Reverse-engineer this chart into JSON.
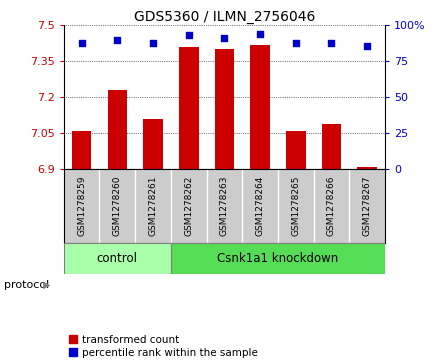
{
  "title": "GDS5360 / ILMN_2756046",
  "samples": [
    "GSM1278259",
    "GSM1278260",
    "GSM1278261",
    "GSM1278262",
    "GSM1278263",
    "GSM1278264",
    "GSM1278265",
    "GSM1278266",
    "GSM1278267"
  ],
  "bar_values": [
    7.06,
    7.23,
    7.11,
    7.41,
    7.4,
    7.42,
    7.06,
    7.09,
    6.91
  ],
  "dot_values": [
    88,
    90,
    88,
    93,
    91,
    94,
    88,
    88,
    86
  ],
  "ylim_left": [
    6.9,
    7.5
  ],
  "ylim_right": [
    0,
    100
  ],
  "yticks_left": [
    6.9,
    7.05,
    7.2,
    7.35,
    7.5
  ],
  "yticks_right": [
    0,
    25,
    50,
    75,
    100
  ],
  "bar_color": "#cc0000",
  "dot_color": "#0000cc",
  "control_samples": 3,
  "protocol_label": "protocol",
  "group_labels": [
    "control",
    "Csnk1a1 knockdown"
  ],
  "ctrl_color": "#aaffaa",
  "kd_color": "#55dd55",
  "legend_bar_label": "transformed count",
  "legend_dot_label": "percentile rank within the sample",
  "bg_color": "#ffffff",
  "tick_label_color_left": "#cc0000",
  "tick_label_color_right": "#0000cc",
  "sample_bg_color": "#cccccc"
}
